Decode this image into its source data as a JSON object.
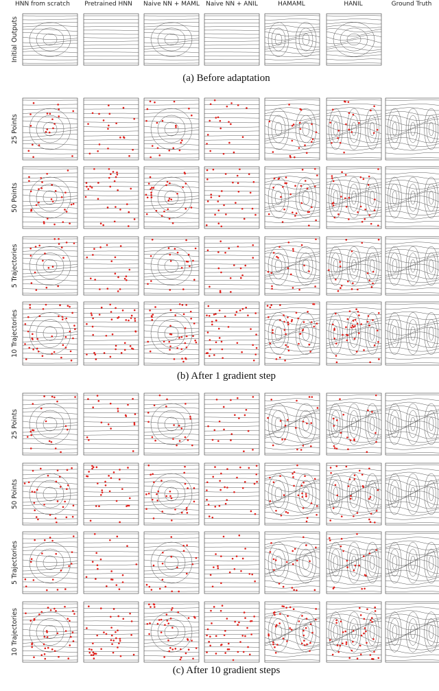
{
  "columns": [
    "HNN from scratch",
    "Pretrained HNN",
    "Naive NN + MAML",
    "Naive NN + ANIL",
    "HAMAML",
    "HANIL",
    "Ground Truth"
  ],
  "sections": [
    {
      "caption": "(a) Before adaptation",
      "rows": [
        "Initial Outputs"
      ]
    },
    {
      "caption": "(b) After 1 gradient step",
      "rows": [
        "25 Points",
        "50 Points",
        "5 Trajectories",
        "10 Trajectories"
      ]
    },
    {
      "caption": "(c) After 10 gradient steps",
      "rows": [
        "25 Points",
        "50 Points",
        "5 Trajectories",
        "10 Trajectories"
      ]
    }
  ]
}
